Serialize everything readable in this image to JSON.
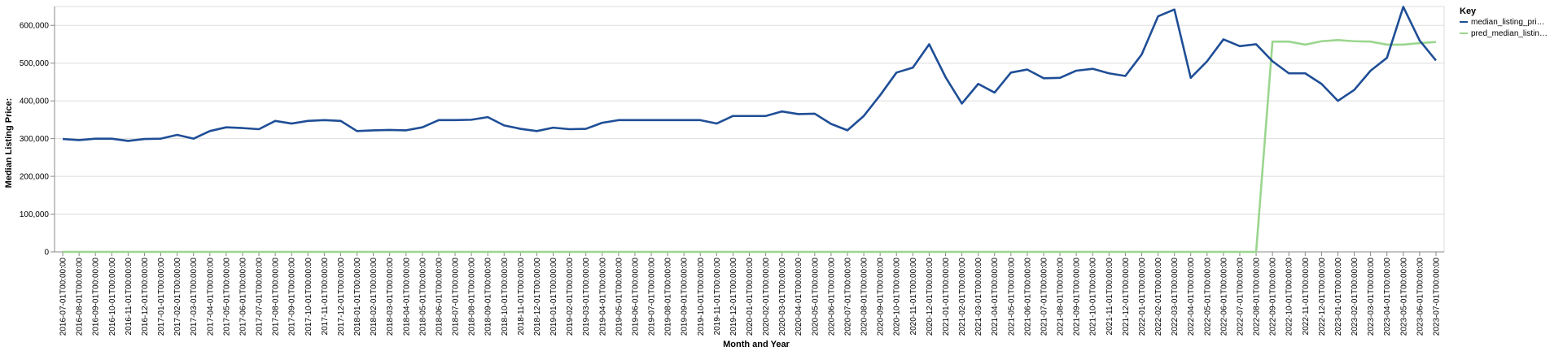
{
  "chart_data": {
    "type": "line",
    "xlabel": "Month and Year",
    "ylabel": "Median Listing Price:",
    "ylim": [
      0,
      650000
    ],
    "yticks": [
      0,
      100000,
      200000,
      300000,
      400000,
      500000,
      600000
    ],
    "grid": true,
    "legend_position": "top-right",
    "legend_title": "Key",
    "x": [
      "2016-07-01T00:00:00",
      "2016-08-01T00:00:00",
      "2016-09-01T00:00:00",
      "2016-10-01T00:00:00",
      "2016-11-01T00:00:00",
      "2016-12-01T00:00:00",
      "2017-01-01T00:00:00",
      "2017-02-01T00:00:00",
      "2017-03-01T00:00:00",
      "2017-04-01T00:00:00",
      "2017-05-01T00:00:00",
      "2017-06-01T00:00:00",
      "2017-07-01T00:00:00",
      "2017-08-01T00:00:00",
      "2017-09-01T00:00:00",
      "2017-10-01T00:00:00",
      "2017-11-01T00:00:00",
      "2017-12-01T00:00:00",
      "2018-01-01T00:00:00",
      "2018-02-01T00:00:00",
      "2018-03-01T00:00:00",
      "2018-04-01T00:00:00",
      "2018-05-01T00:00:00",
      "2018-06-01T00:00:00",
      "2018-07-01T00:00:00",
      "2018-08-01T00:00:00",
      "2018-09-01T00:00:00",
      "2018-10-01T00:00:00",
      "2018-11-01T00:00:00",
      "2018-12-01T00:00:00",
      "2019-01-01T00:00:00",
      "2019-02-01T00:00:00",
      "2019-03-01T00:00:00",
      "2019-04-01T00:00:00",
      "2019-05-01T00:00:00",
      "2019-06-01T00:00:00",
      "2019-07-01T00:00:00",
      "2019-08-01T00:00:00",
      "2019-09-01T00:00:00",
      "2019-10-01T00:00:00",
      "2019-11-01T00:00:00",
      "2019-12-01T00:00:00",
      "2020-01-01T00:00:00",
      "2020-02-01T00:00:00",
      "2020-03-01T00:00:00",
      "2020-04-01T00:00:00",
      "2020-05-01T00:00:00",
      "2020-06-01T00:00:00",
      "2020-07-01T00:00:00",
      "2020-08-01T00:00:00",
      "2020-09-01T00:00:00",
      "2020-10-01T00:00:00",
      "2020-11-01T00:00:00",
      "2020-12-01T00:00:00",
      "2021-01-01T00:00:00",
      "2021-02-01T00:00:00",
      "2021-03-01T00:00:00",
      "2021-04-01T00:00:00",
      "2021-05-01T00:00:00",
      "2021-06-01T00:00:00",
      "2021-07-01T00:00:00",
      "2021-08-01T00:00:00",
      "2021-09-01T00:00:00",
      "2021-10-01T00:00:00",
      "2021-11-01T00:00:00",
      "2021-12-01T00:00:00",
      "2022-01-01T00:00:00",
      "2022-02-01T00:00:00",
      "2022-03-01T00:00:00",
      "2022-04-01T00:00:00",
      "2022-05-01T00:00:00",
      "2022-06-01T00:00:00",
      "2022-07-01T00:00:00",
      "2022-08-01T00:00:00",
      "2022-09-01T00:00:00",
      "2022-10-01T00:00:00",
      "2022-11-01T00:00:00",
      "2022-12-01T00:00:00",
      "2023-01-01T00:00:00",
      "2023-02-01T00:00:00",
      "2023-03-01T00:00:00",
      "2023-04-01T00:00:00",
      "2023-05-01T00:00:00",
      "2023-06-01T00:00:00",
      "2023-07-01T00:00:00"
    ],
    "series": [
      {
        "name": "median_listing_pri…",
        "color": "#1f4e96",
        "values": [
          299000,
          296000,
          299900,
          299900,
          294000,
          299000,
          299900,
          310000,
          299900,
          320000,
          330000,
          328000,
          325000,
          347000,
          340000,
          347000,
          349000,
          347000,
          320000,
          322000,
          323000,
          322000,
          330000,
          349000,
          349000,
          350000,
          357000,
          335000,
          326000,
          320000,
          329000,
          325000,
          326000,
          342000,
          349000,
          349000,
          349000,
          349000,
          349000,
          349000,
          340000,
          360000,
          360000,
          360000,
          372000,
          365000,
          366000,
          339000,
          322000,
          360000,
          415000,
          475000,
          488000,
          550000,
          463000,
          393000,
          445000,
          422000,
          475000,
          483000,
          460000,
          461000,
          480000,
          485000,
          473000,
          466000,
          523000,
          624000,
          642000,
          461000,
          505000,
          563000,
          545000,
          550000,
          505000,
          473000,
          473000,
          445000,
          400000,
          429000,
          480000,
          514000,
          649000,
          560000,
          507000
        ]
      },
      {
        "name": "pred_median_listin…",
        "color": "#9bd68f",
        "values": [
          0,
          0,
          0,
          0,
          0,
          0,
          0,
          0,
          0,
          0,
          0,
          0,
          0,
          0,
          0,
          0,
          0,
          0,
          0,
          0,
          0,
          0,
          0,
          0,
          0,
          0,
          0,
          0,
          0,
          0,
          0,
          0,
          0,
          0,
          0,
          0,
          0,
          0,
          0,
          0,
          0,
          0,
          0,
          0,
          0,
          0,
          0,
          0,
          0,
          0,
          0,
          0,
          0,
          0,
          0,
          0,
          0,
          0,
          0,
          0,
          0,
          0,
          0,
          0,
          0,
          0,
          0,
          0,
          0,
          0,
          0,
          0,
          0,
          0,
          557000,
          557000,
          549000,
          558000,
          561000,
          558000,
          557000,
          549000,
          549000,
          553000,
          556000
        ]
      }
    ]
  }
}
